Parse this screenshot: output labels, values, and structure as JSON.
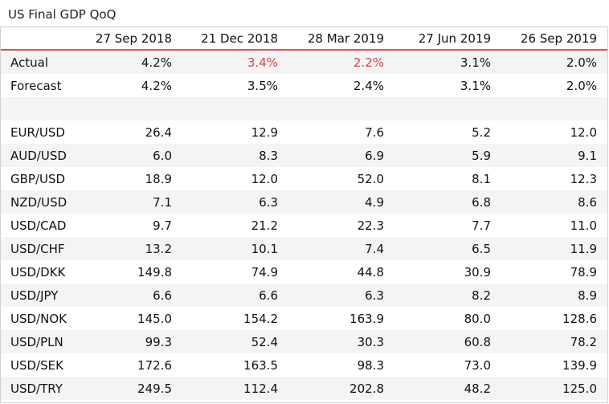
{
  "title": "US Final GDP QoQ",
  "header": [
    "",
    "27 Sep 2018",
    "21 Dec 2018",
    "28 Mar 2019",
    "27 Jun 2019",
    "26 Sep 2019"
  ],
  "rows": [
    {
      "label": "Actual",
      "values": [
        "4.2%",
        "3.4%",
        "2.2%",
        "3.1%",
        "2.0%"
      ],
      "red_indices": [
        1,
        2
      ]
    },
    {
      "label": "Forecast",
      "values": [
        "4.2%",
        "3.5%",
        "2.4%",
        "3.1%",
        "2.0%"
      ]
    },
    {
      "label": "",
      "values": [
        "",
        "",
        "",
        "",
        ""
      ]
    },
    {
      "label": "EUR/USD",
      "values": [
        "26.4",
        "12.9",
        "7.6",
        "5.2",
        "12.0"
      ]
    },
    {
      "label": "AUD/USD",
      "values": [
        "6.0",
        "8.3",
        "6.9",
        "5.9",
        "9.1"
      ]
    },
    {
      "label": "GBP/USD",
      "values": [
        "18.9",
        "12.0",
        "52.0",
        "8.1",
        "12.3"
      ]
    },
    {
      "label": "NZD/USD",
      "values": [
        "7.1",
        "6.3",
        "4.9",
        "6.8",
        "8.6"
      ]
    },
    {
      "label": "USD/CAD",
      "values": [
        "9.7",
        "21.2",
        "22.3",
        "7.7",
        "11.0"
      ]
    },
    {
      "label": "USD/CHF",
      "values": [
        "13.2",
        "10.1",
        "7.4",
        "6.5",
        "11.9"
      ]
    },
    {
      "label": "USD/DKK",
      "values": [
        "149.8",
        "74.9",
        "44.8",
        "30.9",
        "78.9"
      ]
    },
    {
      "label": "USD/JPY",
      "values": [
        "6.6",
        "6.6",
        "6.3",
        "8.2",
        "8.9"
      ]
    },
    {
      "label": "USD/NOK",
      "values": [
        "145.0",
        "154.2",
        "163.9",
        "80.0",
        "128.6"
      ]
    },
    {
      "label": "USD/PLN",
      "values": [
        "99.3",
        "52.4",
        "30.3",
        "60.8",
        "78.2"
      ]
    },
    {
      "label": "USD/SEK",
      "values": [
        "172.6",
        "163.5",
        "98.3",
        "73.0",
        "139.9"
      ]
    },
    {
      "label": "USD/TRY",
      "values": [
        "249.5",
        "112.4",
        "202.8",
        "48.2",
        "125.0"
      ]
    }
  ],
  "colors": {
    "header_rule": "#d9534f",
    "highlight_red": "#d64545",
    "zebra": "#f4f4f4",
    "border": "#d0d0d0"
  }
}
